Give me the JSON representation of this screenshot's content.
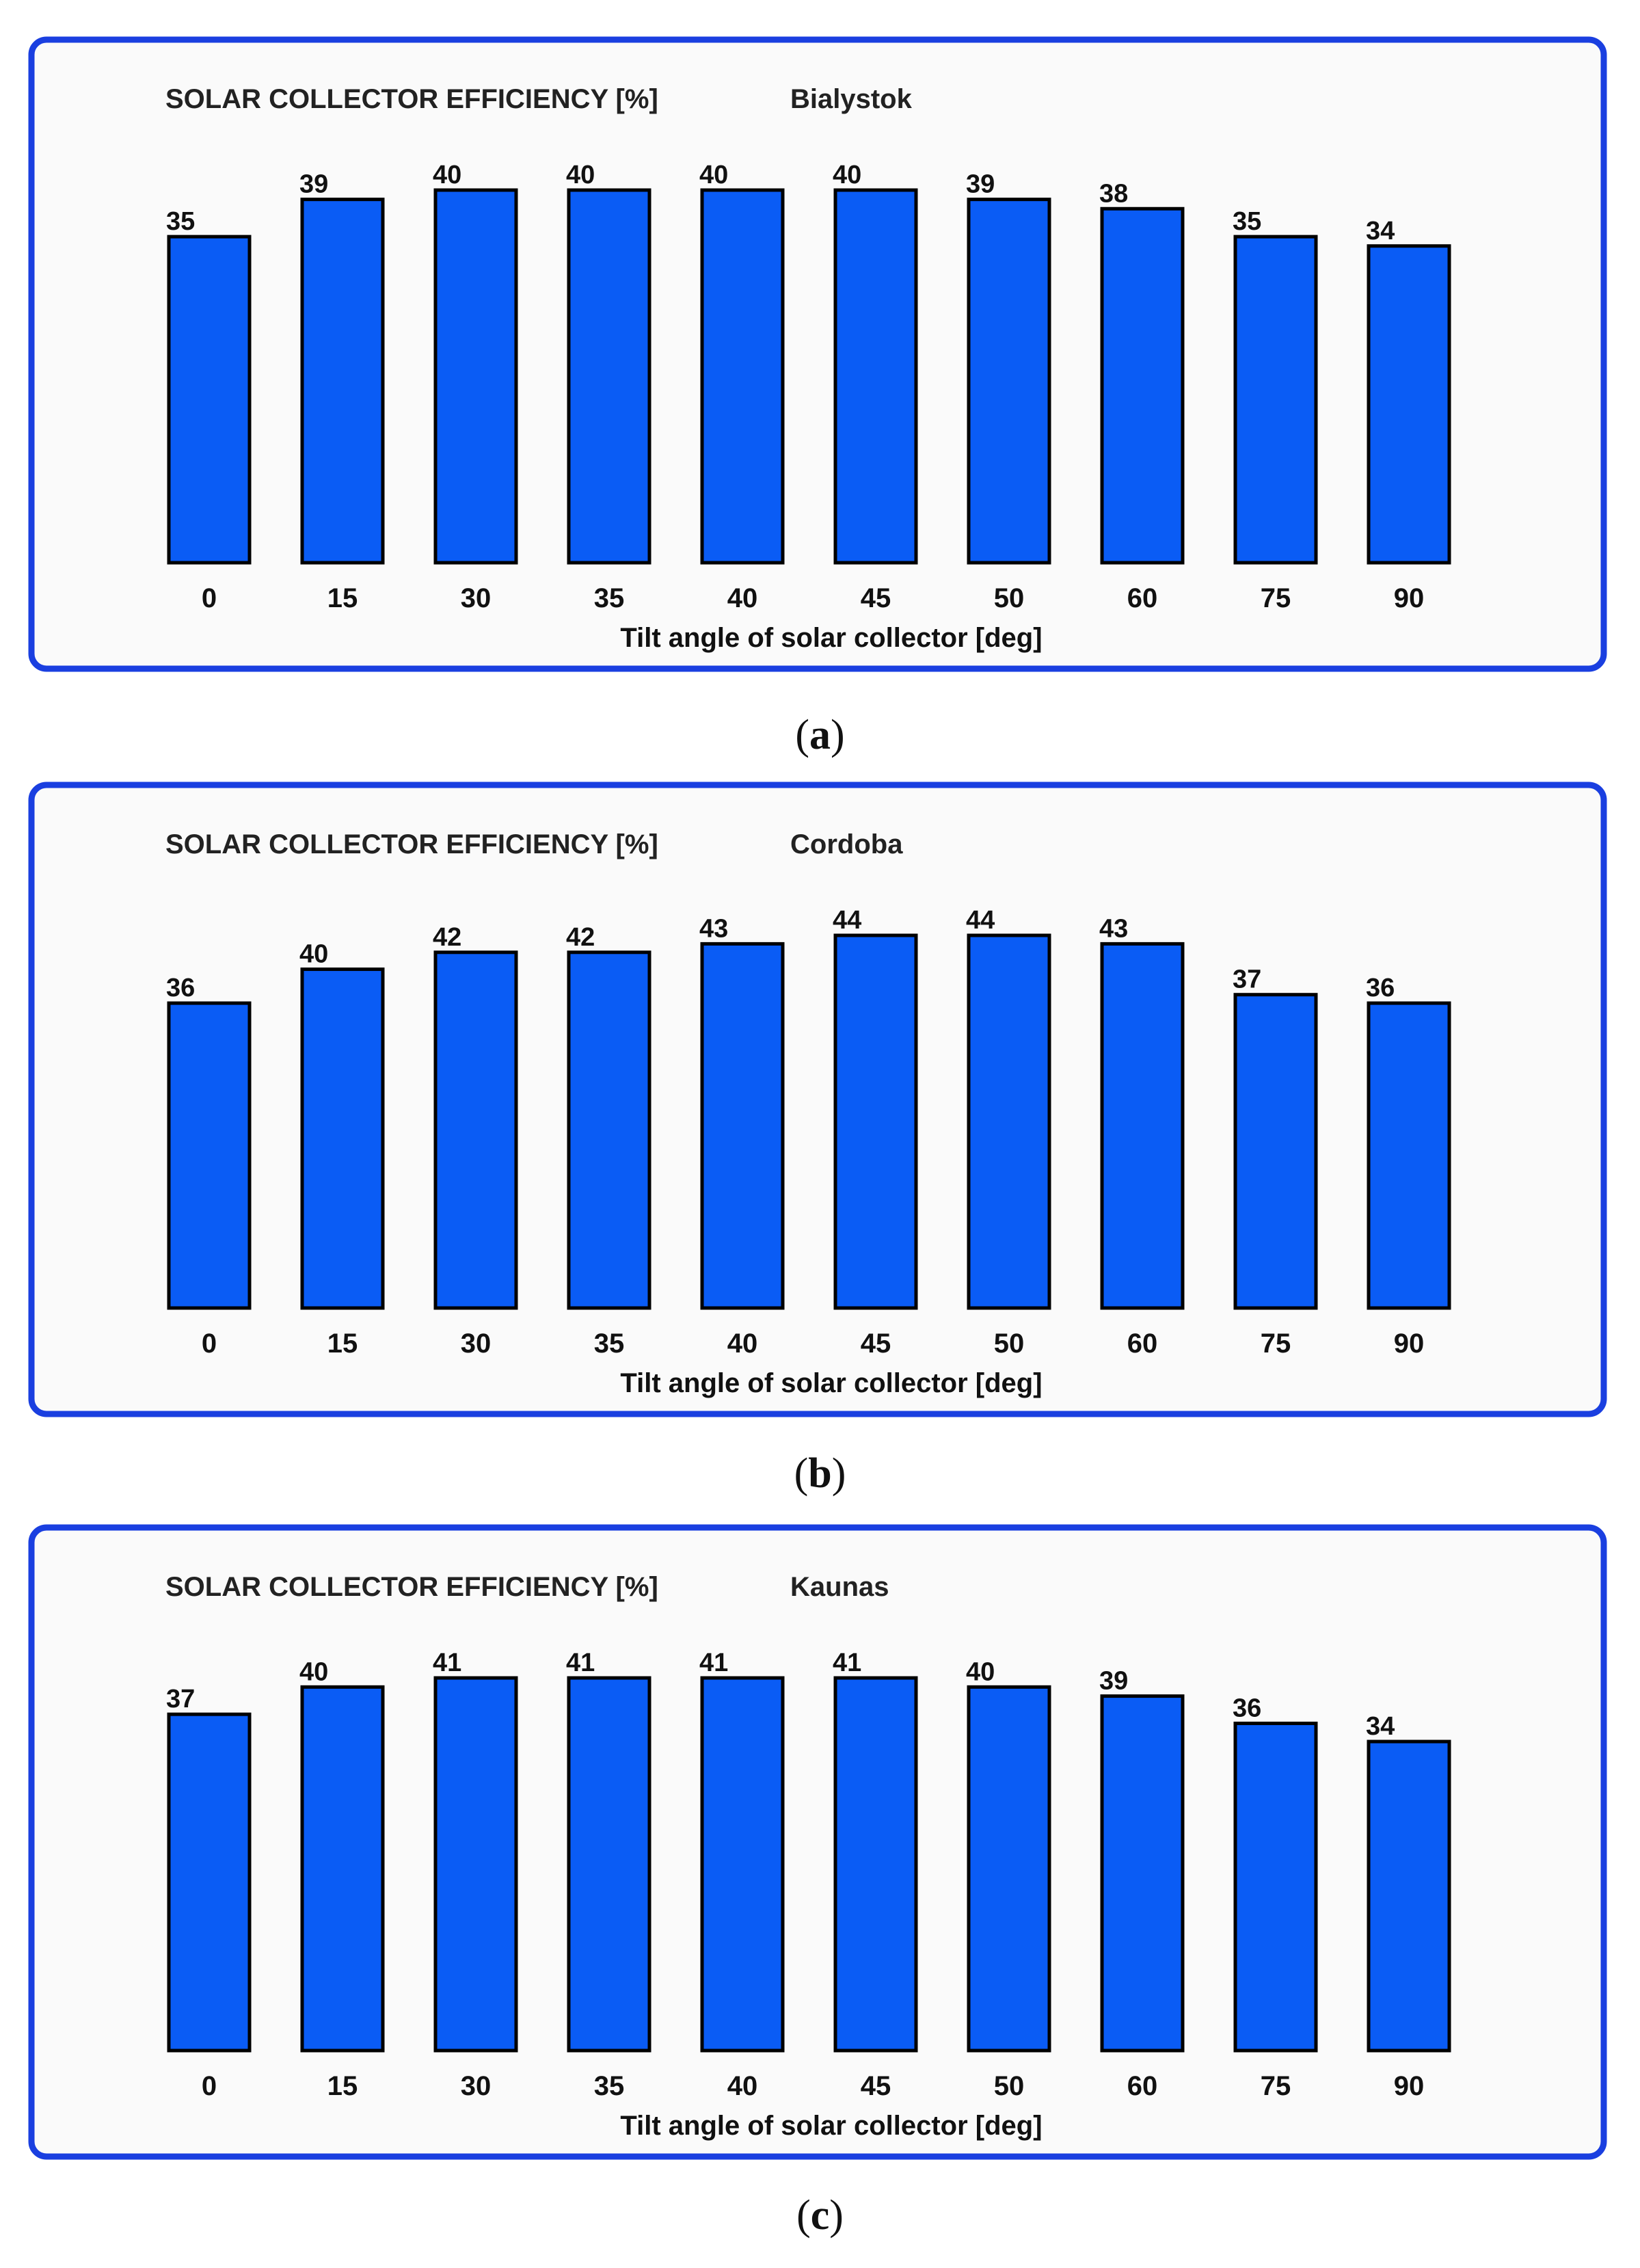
{
  "chart_data": [
    {
      "type": "bar",
      "title": "SOLAR COLLECTOR EFFICIENCY [%]",
      "subtitle": "Bialystok",
      "xlabel": "Tilt angle of solar collector [deg]",
      "categories": [
        "0",
        "15",
        "30",
        "35",
        "40",
        "45",
        "50",
        "60",
        "75",
        "90"
      ],
      "values": [
        35,
        39,
        40,
        40,
        40,
        40,
        39,
        38,
        35,
        34
      ],
      "ylim": [
        0,
        40
      ],
      "grid": false,
      "legend": "none",
      "bar_color": "#0a5cf5",
      "bar_outline": "#000000",
      "frame_color": "#1a3fe0",
      "caption_letter": "a"
    },
    {
      "type": "bar",
      "title": "SOLAR COLLECTOR EFFICIENCY [%]",
      "subtitle": "Cordoba",
      "xlabel": "Tilt angle of solar collector [deg]",
      "categories": [
        "0",
        "15",
        "30",
        "35",
        "40",
        "45",
        "50",
        "60",
        "75",
        "90"
      ],
      "values": [
        36,
        40,
        42,
        42,
        43,
        44,
        44,
        43,
        37,
        36
      ],
      "ylim": [
        0,
        44
      ],
      "grid": false,
      "legend": "none",
      "bar_color": "#0a5cf5",
      "bar_outline": "#000000",
      "frame_color": "#1a3fe0",
      "caption_letter": "b"
    },
    {
      "type": "bar",
      "title": "SOLAR COLLECTOR EFFICIENCY [%]",
      "subtitle": "Kaunas",
      "xlabel": "Tilt angle of solar collector [deg]",
      "categories": [
        "0",
        "15",
        "30",
        "35",
        "40",
        "45",
        "50",
        "60",
        "75",
        "90"
      ],
      "values": [
        37,
        40,
        41,
        41,
        41,
        41,
        40,
        39,
        36,
        34
      ],
      "ylim": [
        0,
        41
      ],
      "grid": false,
      "legend": "none",
      "bar_color": "#0a5cf5",
      "bar_outline": "#000000",
      "frame_color": "#1a3fe0",
      "caption_letter": "c"
    }
  ]
}
